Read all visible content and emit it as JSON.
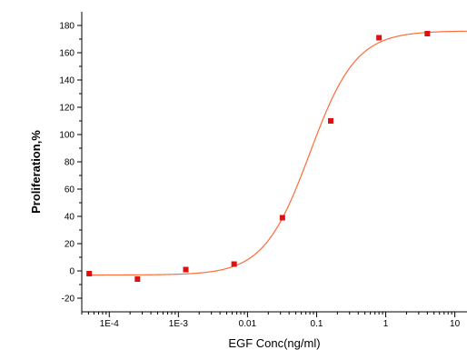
{
  "chart_data": {
    "type": "scatter",
    "title": "",
    "xlabel": "EGF Conc(ng/ml)",
    "ylabel": "Proliferation,%",
    "x_scale": "log",
    "xlim": [
      4e-05,
      15
    ],
    "ylim": [
      -30,
      190
    ],
    "grid": false,
    "x_ticks": [
      {
        "value": 0.0001,
        "label": "1E-4"
      },
      {
        "value": 0.001,
        "label": "1E-3"
      },
      {
        "value": 0.01,
        "label": "0.01"
      },
      {
        "value": 0.1,
        "label": "0.1"
      },
      {
        "value": 1,
        "label": "1"
      },
      {
        "value": 10,
        "label": "10"
      }
    ],
    "y_ticks": [
      -20,
      0,
      20,
      40,
      60,
      80,
      100,
      120,
      140,
      160,
      180
    ],
    "series": [
      {
        "kind": "points",
        "color": "#dd1111",
        "x": [
          5.12e-05,
          0.000256,
          0.00128,
          0.0064,
          0.032,
          0.16,
          0.8,
          4.0
        ],
        "y": [
          -2,
          -6,
          1,
          5,
          39,
          110,
          171,
          174
        ]
      },
      {
        "kind": "fit_curve",
        "color": "#ff6b3a",
        "model": "4PL",
        "bottom": -3,
        "top": 176,
        "ec50": 0.08,
        "hill": 1.3
      }
    ]
  }
}
